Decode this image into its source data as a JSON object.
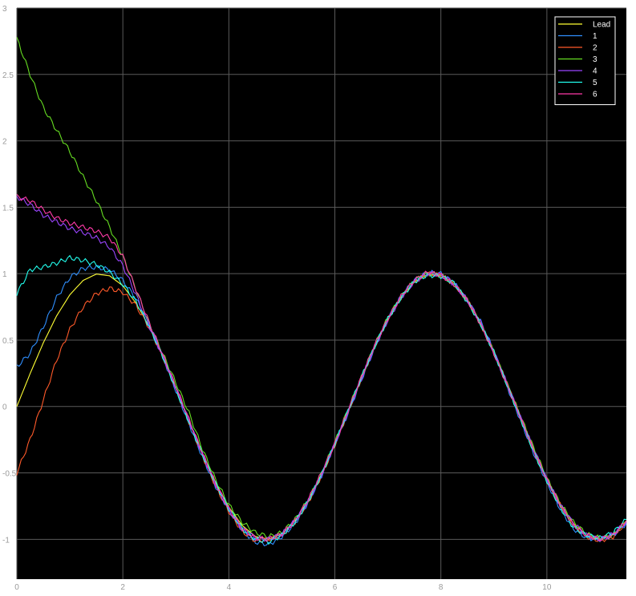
{
  "chart_data": {
    "type": "line",
    "title": "",
    "xlabel": "",
    "ylabel": "",
    "xlim": [
      0,
      11.5
    ],
    "ylim": [
      -1.3,
      3
    ],
    "grid": true,
    "legend_position": "top-right",
    "background_color": "#000000",
    "grid_color": "#5a5a5a",
    "axis_tick_color": "#9a9a9a",
    "xticks": [
      0,
      2,
      4,
      6,
      8,
      10
    ],
    "xtick_labels": [
      "0",
      "2",
      "4",
      "6",
      "8",
      "10"
    ],
    "yticks": [
      -1,
      -0.5,
      0,
      0.5,
      1,
      1.5,
      2,
      2.5,
      3
    ],
    "ytick_labels": [
      "-1",
      "-0.5",
      "0",
      "0.5",
      "1",
      "1.5",
      "2",
      "2.5",
      "3"
    ],
    "x": [
      0,
      0.25,
      0.5,
      0.75,
      1.0,
      1.25,
      1.5,
      1.75,
      2.0,
      2.25,
      2.5,
      2.75,
      3.0,
      3.25,
      3.5,
      3.75,
      4.0,
      4.25,
      4.5,
      4.75,
      5.0,
      5.25,
      5.5,
      5.75,
      6.0,
      6.25,
      6.5,
      6.75,
      7.0,
      7.25,
      7.5,
      7.75,
      8.0,
      8.25,
      8.5,
      8.75,
      9.0,
      9.25,
      9.5,
      9.75,
      10.0,
      10.25,
      10.5,
      10.75,
      11.0,
      11.25,
      11.5
    ],
    "series": [
      {
        "name": "Lead",
        "color": "#ffff33",
        "values": [
          0.0,
          0.247,
          0.479,
          0.682,
          0.841,
          0.949,
          0.997,
          0.984,
          0.909,
          0.778,
          0.598,
          0.382,
          0.141,
          -0.108,
          -0.351,
          -0.572,
          -0.757,
          -0.895,
          -0.978,
          -0.999,
          -0.959,
          -0.859,
          -0.706,
          -0.508,
          -0.279,
          -0.033,
          0.215,
          0.451,
          0.657,
          0.823,
          0.938,
          0.994,
          0.989,
          0.923,
          0.798,
          0.625,
          0.412,
          0.174,
          -0.075,
          -0.319,
          -0.544,
          -0.735,
          -0.88,
          -0.971,
          -1.0,
          -0.966,
          -0.874
        ]
      },
      {
        "name": "1",
        "color": "#2f8fff",
        "values": [
          0.3,
          0.4,
          0.6,
          0.82,
          0.97,
          1.04,
          1.05,
          1.03,
          0.95,
          0.81,
          0.62,
          0.38,
          0.12,
          -0.13,
          -0.38,
          -0.6,
          -0.78,
          -0.93,
          -1.02,
          -1.04,
          -0.98,
          -0.88,
          -0.72,
          -0.52,
          -0.28,
          -0.05,
          0.2,
          0.44,
          0.66,
          0.83,
          0.95,
          1.01,
          1.0,
          0.93,
          0.8,
          0.64,
          0.42,
          0.15,
          -0.1,
          -0.35,
          -0.57,
          -0.77,
          -0.92,
          -0.99,
          -1.0,
          -0.97,
          -0.88
        ]
      },
      {
        "name": "2",
        "color": "#ff5a2a",
        "values": [
          -0.5,
          -0.25,
          0.05,
          0.35,
          0.58,
          0.75,
          0.85,
          0.89,
          0.86,
          0.76,
          0.59,
          0.38,
          0.13,
          -0.12,
          -0.37,
          -0.6,
          -0.79,
          -0.94,
          -1.01,
          -1.0,
          -0.97,
          -0.87,
          -0.72,
          -0.52,
          -0.29,
          -0.04,
          0.21,
          0.45,
          0.66,
          0.82,
          0.94,
          1.0,
          0.99,
          0.92,
          0.8,
          0.62,
          0.41,
          0.17,
          -0.08,
          -0.33,
          -0.56,
          -0.74,
          -0.89,
          -0.98,
          -1.01,
          -0.98,
          -0.87
        ]
      },
      {
        "name": "3",
        "color": "#66dd22",
        "values": [
          2.77,
          2.5,
          2.25,
          2.08,
          1.92,
          1.73,
          1.55,
          1.35,
          1.13,
          0.88,
          0.62,
          0.4,
          0.18,
          -0.05,
          -0.32,
          -0.55,
          -0.74,
          -0.87,
          -0.95,
          -0.98,
          -0.95,
          -0.85,
          -0.7,
          -0.5,
          -0.27,
          -0.02,
          0.22,
          0.46,
          0.67,
          0.83,
          0.95,
          1.0,
          0.99,
          0.92,
          0.8,
          0.62,
          0.41,
          0.17,
          -0.07,
          -0.31,
          -0.54,
          -0.73,
          -0.87,
          -0.96,
          -0.99,
          -0.97,
          -0.86
        ]
      },
      {
        "name": "4",
        "color": "#9b45ff",
        "values": [
          1.58,
          1.52,
          1.44,
          1.39,
          1.34,
          1.31,
          1.27,
          1.2,
          1.06,
          0.84,
          0.6,
          0.38,
          0.14,
          -0.11,
          -0.36,
          -0.59,
          -0.78,
          -0.92,
          -0.99,
          -1.0,
          -0.96,
          -0.86,
          -0.71,
          -0.51,
          -0.28,
          -0.04,
          0.21,
          0.45,
          0.65,
          0.82,
          0.94,
          1.0,
          0.99,
          0.92,
          0.8,
          0.63,
          0.41,
          0.17,
          -0.08,
          -0.32,
          -0.55,
          -0.74,
          -0.88,
          -0.97,
          -1.0,
          -0.96,
          -0.87
        ]
      },
      {
        "name": "5",
        "color": "#22ffee",
        "values": [
          0.85,
          1.03,
          1.05,
          1.08,
          1.12,
          1.1,
          1.07,
          1.01,
          0.92,
          0.79,
          0.6,
          0.38,
          0.13,
          -0.12,
          -0.36,
          -0.58,
          -0.77,
          -0.92,
          -1.0,
          -1.02,
          -0.97,
          -0.87,
          -0.71,
          -0.51,
          -0.28,
          -0.03,
          0.22,
          0.45,
          0.66,
          0.82,
          0.94,
          0.99,
          0.98,
          0.93,
          0.79,
          0.62,
          0.41,
          0.16,
          -0.09,
          -0.34,
          -0.56,
          -0.76,
          -0.91,
          -0.97,
          -0.99,
          -0.95,
          -0.85
        ]
      },
      {
        "name": "6",
        "color": "#ff3aa8",
        "values": [
          1.58,
          1.55,
          1.48,
          1.42,
          1.38,
          1.35,
          1.32,
          1.27,
          1.13,
          0.88,
          0.63,
          0.39,
          0.15,
          -0.1,
          -0.35,
          -0.58,
          -0.77,
          -0.92,
          -0.99,
          -1.0,
          -0.96,
          -0.86,
          -0.7,
          -0.5,
          -0.28,
          -0.03,
          0.22,
          0.46,
          0.66,
          0.83,
          0.95,
          1.01,
          0.99,
          0.92,
          0.8,
          0.62,
          0.4,
          0.16,
          -0.08,
          -0.33,
          -0.55,
          -0.74,
          -0.89,
          -0.97,
          -1.0,
          -0.97,
          -0.86
        ]
      }
    ]
  }
}
